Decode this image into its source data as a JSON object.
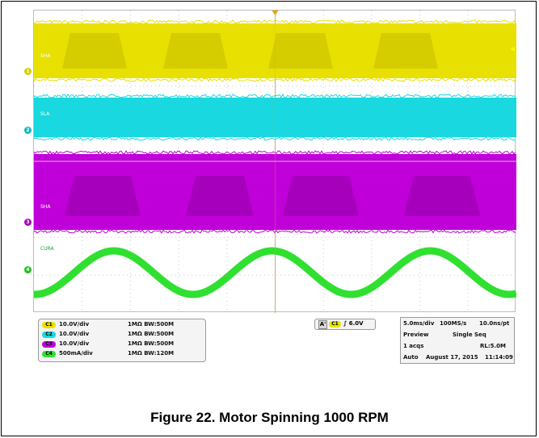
{
  "figure": {
    "caption": "Figure 22. Motor Spinning 1000 RPM"
  },
  "colors": {
    "ch1": "#e8e000",
    "ch2": "#19d8e0",
    "ch3": "#c000d8",
    "ch4": "#30e030",
    "grid": "#c8c8c8",
    "trigger": "#f0a000"
  },
  "traces": {
    "ch1_label": "SHA",
    "ch2_label": "SLA",
    "ch3_label": "SHA",
    "ch4_label": "CURA"
  },
  "channels": [
    {
      "id": "C1",
      "scale": "10.0V/div",
      "impedance": "1MΩ",
      "bandwidth": "BW:500M",
      "color": "#e8e000"
    },
    {
      "id": "C2",
      "scale": "10.0V/div",
      "impedance": "1MΩ",
      "bandwidth": "BW:500M",
      "color": "#19d8e0"
    },
    {
      "id": "C3",
      "scale": "10.0V/div",
      "impedance": "1MΩ",
      "bandwidth": "BW:500M",
      "color": "#c000d8"
    },
    {
      "id": "C4",
      "scale": "500mA/div",
      "impedance": "1MΩ",
      "bandwidth": "BW:120M",
      "color": "#30e030"
    }
  ],
  "trigger": {
    "source_letter": "A'",
    "channel": "C1",
    "level": "6.0V"
  },
  "horizontal": {
    "time_div": "5.0ms/div",
    "sample_rate": "100MS/s",
    "resolution": "10.0ns/pt",
    "mode": "Preview",
    "acq_mode": "Single Seq",
    "acqs": "1 acqs",
    "record_length": "RL:5.0M",
    "trigger_mode": "Auto",
    "date": "August 17, 2015",
    "time": "11:14:09"
  },
  "markers": {
    "m1": "1",
    "m2": "2",
    "m3": "3",
    "m4": "4"
  }
}
